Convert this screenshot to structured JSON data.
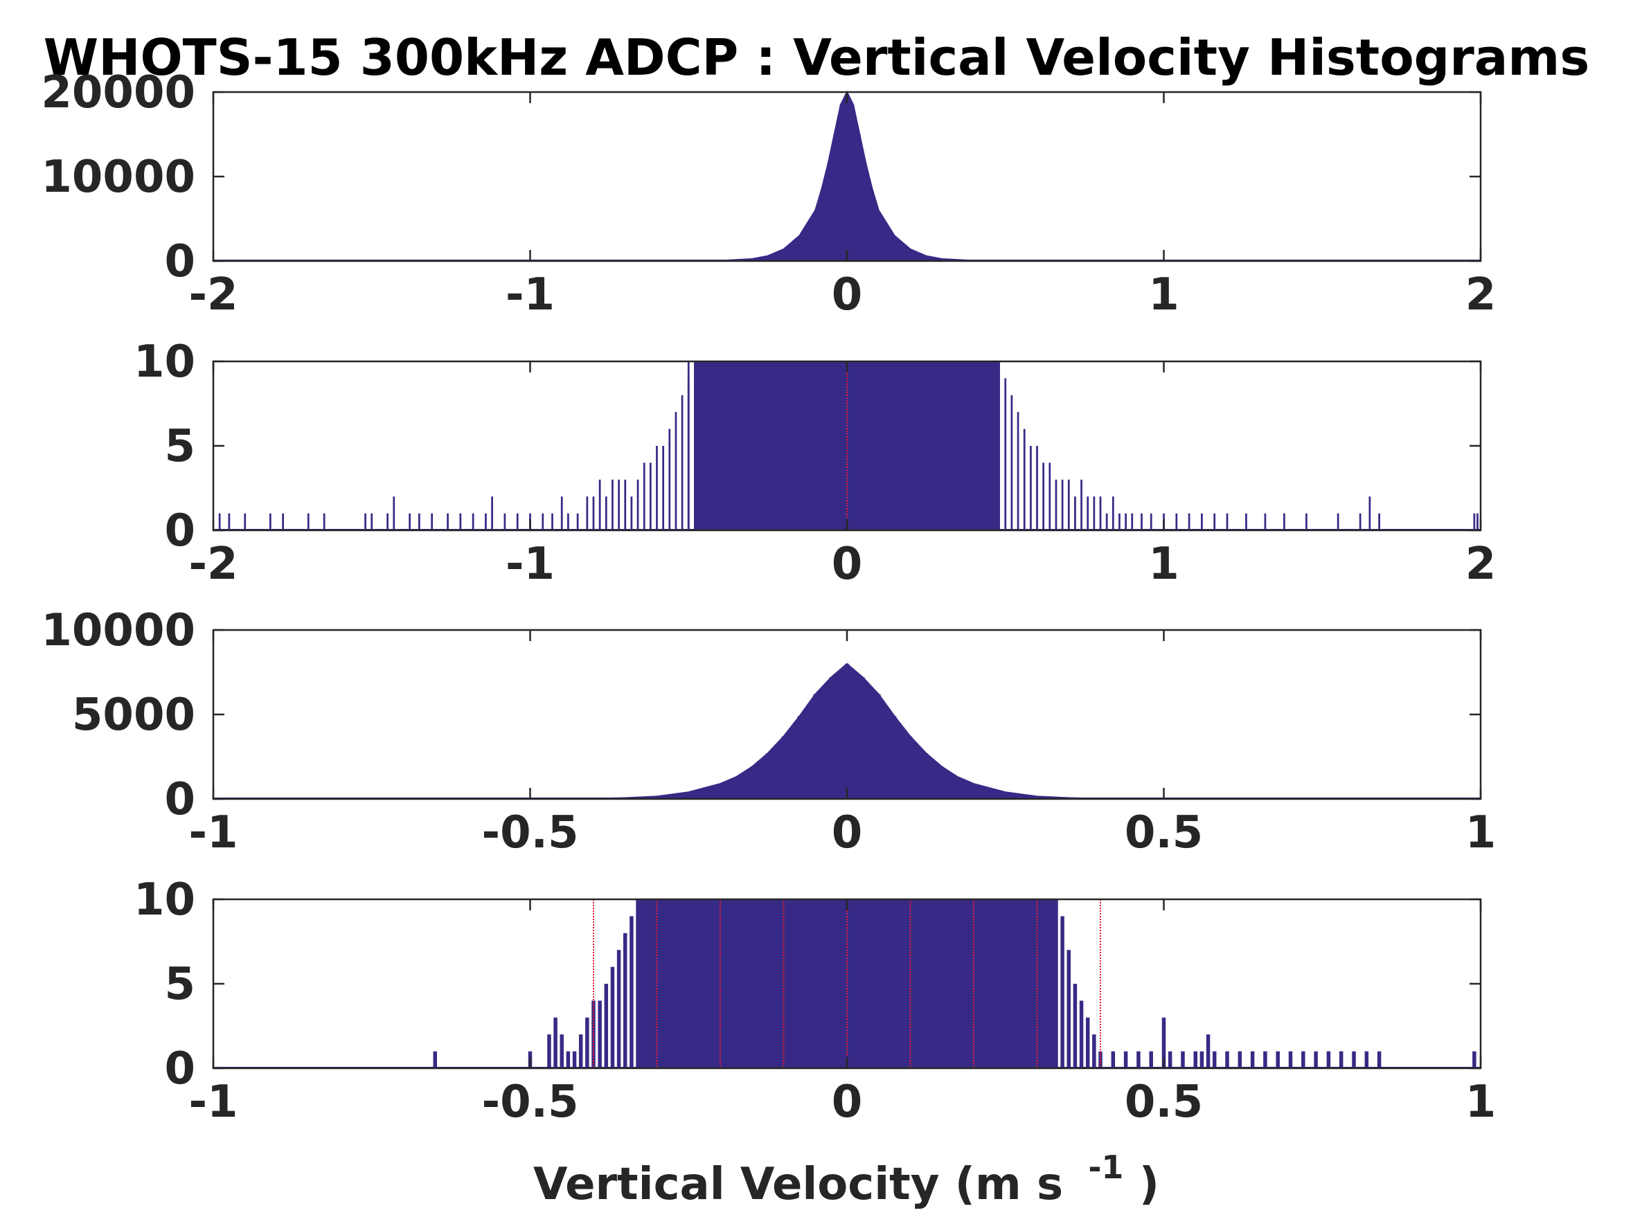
{
  "figure": {
    "title": "WHOTS-15 300kHz ADCP : Vertical Velocity Histograms",
    "xlabel_main": "Vertical Velocity (m s",
    "xlabel_sup": "-1",
    "xlabel_close": ")"
  },
  "colors": {
    "bar": "#372a86",
    "reference_line": "#e8192c",
    "axes": "#262626",
    "background": "#ffffff"
  },
  "chart_data": [
    {
      "type": "bar",
      "panel": 1,
      "xlim": [
        -2,
        2
      ],
      "ylim": [
        0,
        20000
      ],
      "xticks": [
        "-2",
        "-1",
        "0",
        "1",
        "2"
      ],
      "xtick_values": [
        -2,
        -1,
        0,
        1,
        2
      ],
      "yticks": [
        "0",
        "10000",
        "20000"
      ],
      "ytick_values": [
        0,
        10000,
        20000
      ],
      "grid": false,
      "bins": {
        "x": [
          -0.5,
          -0.4,
          -0.3,
          -0.25,
          -0.2,
          -0.15,
          -0.1,
          -0.08,
          -0.06,
          -0.04,
          -0.02,
          0,
          0.02,
          0.04,
          0.06,
          0.08,
          0.1,
          0.15,
          0.2,
          0.25,
          0.3,
          0.4,
          0.5
        ],
        "counts": [
          10,
          40,
          250,
          600,
          1400,
          3000,
          6000,
          8500,
          11500,
          15000,
          18500,
          20000,
          18500,
          15000,
          11500,
          8500,
          6000,
          3000,
          1400,
          600,
          250,
          40,
          10
        ]
      },
      "reference_lines": []
    },
    {
      "type": "bar",
      "panel": 2,
      "xlim": [
        -2,
        2
      ],
      "ylim": [
        0,
        10
      ],
      "xticks": [
        "-2",
        "-1",
        "0",
        "1",
        "2"
      ],
      "xtick_values": [
        -2,
        -1,
        0,
        1,
        2
      ],
      "yticks": [
        "0",
        "5",
        "10"
      ],
      "ytick_values": [
        0,
        5,
        10
      ],
      "grid": false,
      "bins": {
        "x": [
          -1.98,
          -1.95,
          -1.9,
          -1.82,
          -1.78,
          -1.7,
          -1.65,
          -1.52,
          -1.5,
          -1.45,
          -1.43,
          -1.38,
          -1.35,
          -1.31,
          -1.26,
          -1.22,
          -1.18,
          -1.14,
          -1.12,
          -1.08,
          -1.04,
          -1.0,
          -0.96,
          -0.93,
          -0.9,
          -0.88,
          -0.85,
          -0.82,
          -0.8,
          -0.78,
          -0.76,
          -0.74,
          -0.72,
          -0.7,
          -0.68,
          -0.66,
          -0.64,
          -0.62,
          -0.6,
          -0.58,
          -0.56,
          -0.54,
          -0.52,
          -0.5,
          -0.48,
          -0.5,
          0.48,
          0.5,
          0.52,
          0.54,
          0.56,
          0.58,
          0.6,
          0.62,
          0.64,
          0.66,
          0.68,
          0.7,
          0.72,
          0.74,
          0.76,
          0.78,
          0.8,
          0.82,
          0.84,
          0.86,
          0.88,
          0.9,
          0.93,
          0.96,
          1.0,
          1.04,
          1.08,
          1.12,
          1.16,
          1.2,
          1.26,
          1.32,
          1.38,
          1.45,
          1.55,
          1.62,
          1.65,
          1.68,
          1.98,
          1.99
        ],
        "counts": [
          1,
          1,
          1,
          1,
          1,
          1,
          1,
          1,
          1,
          1,
          2,
          1,
          1,
          1,
          1,
          1,
          1,
          1,
          2,
          1,
          1,
          1,
          1,
          1,
          2,
          1,
          1,
          2,
          2,
          3,
          2,
          3,
          3,
          3,
          2,
          3,
          4,
          4,
          5,
          5,
          6,
          7,
          8,
          9,
          10,
          10,
          10,
          9,
          8,
          7,
          6,
          5,
          5,
          4,
          4,
          3,
          3,
          3,
          2,
          3,
          2,
          2,
          2,
          1,
          2,
          1,
          1,
          1,
          1,
          1,
          1,
          1,
          1,
          1,
          1,
          1,
          1,
          1,
          1,
          1,
          1,
          1,
          2,
          1,
          1,
          1
        ],
        "saturated_range": [
          -0.48,
          0.48
        ]
      },
      "reference_lines": [
        0
      ]
    },
    {
      "type": "bar",
      "panel": 3,
      "xlim": [
        -1,
        1
      ],
      "ylim": [
        0,
        10000
      ],
      "xticks": [
        "-1",
        "-0.5",
        "0",
        "0.5",
        "1"
      ],
      "xtick_values": [
        -1,
        -0.5,
        0,
        0.5,
        1
      ],
      "yticks": [
        "0",
        "5000",
        "10000"
      ],
      "ytick_values": [
        0,
        5000,
        10000
      ],
      "grid": false,
      "bins": {
        "x": [
          -0.4,
          -0.35,
          -0.3,
          -0.25,
          -0.2,
          -0.175,
          -0.15,
          -0.125,
          -0.1,
          -0.075,
          -0.05,
          -0.025,
          0,
          0.025,
          0.05,
          0.075,
          0.1,
          0.125,
          0.15,
          0.175,
          0.2,
          0.25,
          0.3,
          0.35,
          0.4
        ],
        "counts": [
          20,
          60,
          150,
          400,
          900,
          1300,
          1900,
          2700,
          3700,
          4900,
          6200,
          7200,
          8000,
          7200,
          6200,
          4900,
          3700,
          2700,
          1900,
          1300,
          900,
          400,
          150,
          60,
          20
        ]
      },
      "reference_lines": []
    },
    {
      "type": "bar",
      "panel": 4,
      "xlim": [
        -1,
        1
      ],
      "ylim": [
        0,
        10
      ],
      "xticks": [
        "-1",
        "-0.5",
        "0",
        "0.5",
        "1"
      ],
      "xtick_values": [
        -1,
        -0.5,
        0,
        0.5,
        1
      ],
      "yticks": [
        "0",
        "5",
        "10"
      ],
      "ytick_values": [
        0,
        5,
        10
      ],
      "grid": false,
      "bins": {
        "x": [
          -0.65,
          -0.5,
          -0.47,
          -0.46,
          -0.45,
          -0.44,
          -0.43,
          -0.42,
          -0.41,
          -0.4,
          -0.39,
          -0.38,
          -0.37,
          -0.36,
          -0.35,
          -0.34,
          -0.33,
          0.33,
          0.34,
          0.35,
          0.36,
          0.37,
          0.38,
          0.39,
          0.4,
          0.42,
          0.44,
          0.46,
          0.48,
          0.5,
          0.51,
          0.53,
          0.55,
          0.56,
          0.57,
          0.58,
          0.6,
          0.62,
          0.64,
          0.66,
          0.68,
          0.7,
          0.72,
          0.74,
          0.76,
          0.78,
          0.8,
          0.82,
          0.84,
          0.99
        ],
        "counts": [
          1,
          1,
          2,
          3,
          2,
          1,
          1,
          2,
          3,
          4,
          4,
          5,
          6,
          7,
          8,
          9,
          10,
          10,
          9,
          7,
          5,
          4,
          3,
          2,
          1,
          1,
          1,
          1,
          1,
          3,
          1,
          1,
          1,
          1,
          2,
          1,
          1,
          1,
          1,
          1,
          1,
          1,
          1,
          1,
          1,
          1,
          1,
          1,
          1,
          1
        ],
        "saturated_range": [
          -0.33,
          0.33
        ]
      },
      "reference_lines": [
        -0.4,
        -0.3,
        -0.2,
        -0.1,
        0,
        0.1,
        0.2,
        0.3,
        0.4
      ]
    }
  ]
}
